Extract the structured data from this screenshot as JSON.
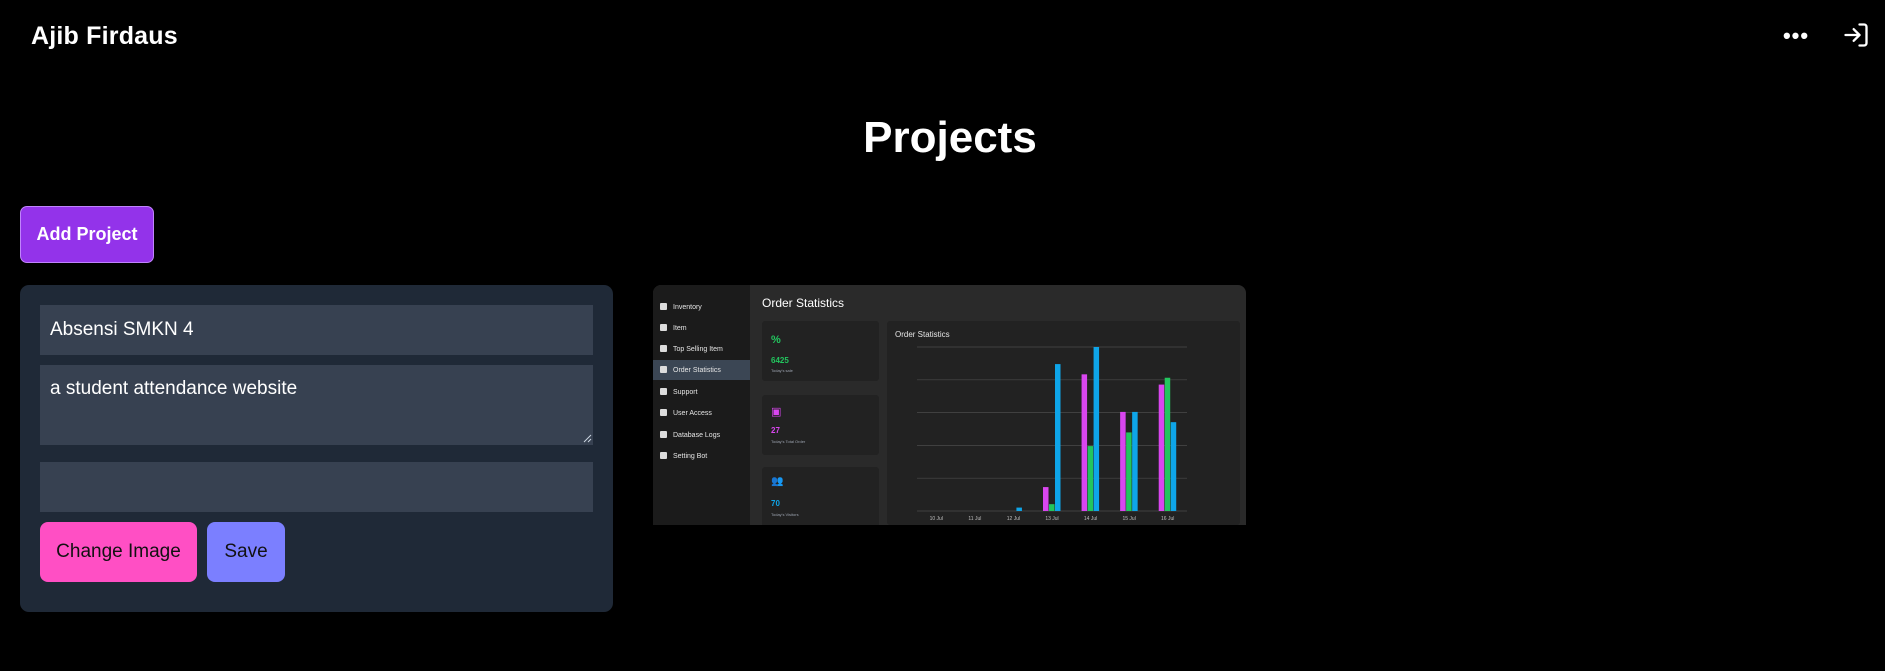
{
  "header": {
    "brand": "Ajib Firdaus",
    "more_icon": "ellipsis-icon",
    "login_icon": "sign-in-icon"
  },
  "page": {
    "title": "Projects"
  },
  "toolbar": {
    "add_project_label": "Add Project"
  },
  "edit_form": {
    "title_value": "Absensi SMKN 4",
    "description_value": "a student attendance website",
    "image_value": "",
    "change_image_label": "Change Image",
    "save_label": "Save"
  },
  "preview": {
    "heading": "Order Statistics",
    "sidebar_items": [
      {
        "label": "Inventory",
        "active": false
      },
      {
        "label": "Item",
        "active": false
      },
      {
        "label": "Top Selling Item",
        "active": false
      },
      {
        "label": "Order Statistics",
        "active": true
      },
      {
        "label": "Support",
        "active": false
      },
      {
        "label": "User Access",
        "active": false
      },
      {
        "label": "Database Logs",
        "active": false
      },
      {
        "label": "Setting Bot",
        "active": false
      }
    ],
    "stats": [
      {
        "icon": "%",
        "value": "6425",
        "label": "Today's sale",
        "color": "#22c55e"
      },
      {
        "icon": "▣",
        "value": "27",
        "label": "Today's Total Order",
        "color": "#d946ef"
      },
      {
        "icon": "👥",
        "value": "70",
        "label": "Today's Visitors",
        "color": "#0ea5e9"
      }
    ],
    "chart_title": "Order Statistics",
    "chart_data": {
      "type": "bar",
      "categories": [
        "10 Jul",
        "11 Jul",
        "12 Jul",
        "13 Jul",
        "14 Jul",
        "15 Jul",
        "16 Jul"
      ],
      "series": [
        {
          "color": "#d946ef",
          "values": [
            0,
            0,
            0,
            7,
            40,
            29,
            37
          ]
        },
        {
          "color": "#22c55e",
          "values": [
            0,
            0,
            0,
            2,
            19,
            23,
            39
          ]
        },
        {
          "color": "#0ea5e9",
          "values": [
            0,
            0,
            1,
            43,
            48,
            29,
            26
          ]
        }
      ],
      "ylim": [
        0,
        48
      ]
    },
    "colors": {
      "magenta": "#d946ef",
      "green": "#22c55e",
      "blue": "#0ea5e9"
    }
  },
  "colors": {
    "add_button": "#9333ea",
    "change_image_button": "#ff4fc4",
    "save_button": "#7b7fff",
    "card_background": "#1f2937",
    "input_background": "#374151"
  }
}
